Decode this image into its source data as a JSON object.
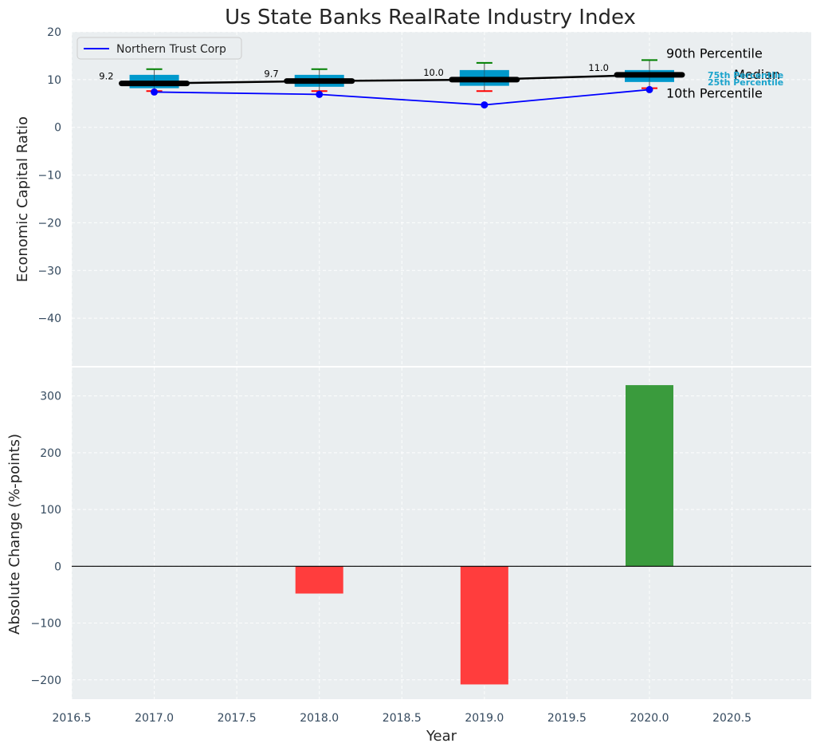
{
  "chart_data": {
    "title": "Us State Banks RealRate Industry Index",
    "xlabel": "Year",
    "xlim": [
      2016.5,
      2020.98
    ],
    "xticks": [
      2016.5,
      2017.0,
      2017.5,
      2018.0,
      2018.5,
      2019.0,
      2019.5,
      2020.0,
      2020.5
    ],
    "xtick_labels": [
      "2016.5",
      "2017.0",
      "2017.5",
      "2018.0",
      "2018.5",
      "2019.0",
      "2019.5",
      "2020.0",
      "2020.5"
    ],
    "colors": {
      "plot_bg": "#eaeef0",
      "box": "#0099cc",
      "company_line": "#0000ff",
      "median_line": "#000000",
      "p90_whisker": "#008000",
      "p10_whisker": "#ff0000",
      "bar_positive": "#3a9b3d",
      "bar_negative": "#ff3d3d"
    },
    "top": {
      "type": "box-line",
      "ylabel": "Economic Capital Ratio",
      "ylim": [
        -50,
        20
      ],
      "yticks": [
        20,
        10,
        0,
        -10,
        -20,
        -30,
        -40
      ],
      "ytick_labels": [
        "20",
        "10",
        "0",
        "−10",
        "−20",
        "−30",
        "−40"
      ],
      "years": [
        2017,
        2018,
        2019,
        2020
      ],
      "p10": [
        7.6,
        7.6,
        7.6,
        8.2
      ],
      "p25": [
        8.2,
        8.5,
        8.7,
        9.5
      ],
      "median": [
        9.2,
        9.7,
        10.0,
        11.0
      ],
      "p75": [
        11.0,
        11.0,
        12.0,
        12.0
      ],
      "p90": [
        12.2,
        12.2,
        13.5,
        14.1
      ],
      "median_labels": [
        "9.2",
        "9.7",
        "10.0",
        "11.0"
      ],
      "company": [
        7.4,
        6.9,
        4.7,
        7.9
      ],
      "legend": {
        "label": "Northern Trust Corp",
        "location": "upper-left"
      },
      "annotations": {
        "p90": "90th Percentile",
        "median": "Median",
        "p10": "10th Percentile",
        "p75": "75th Percentile",
        "p25": "25th Percentile"
      }
    },
    "bottom": {
      "type": "bar",
      "ylabel": "Absolute Change (%-points)",
      "ylim": [
        -234,
        350
      ],
      "yticks": [
        300,
        200,
        100,
        0,
        -100,
        -200
      ],
      "ytick_labels": [
        "300",
        "200",
        "100",
        "0",
        "−100",
        "−200"
      ],
      "years": [
        2017,
        2018,
        2019,
        2020
      ],
      "values": [
        0,
        -48,
        -208,
        319
      ]
    }
  }
}
